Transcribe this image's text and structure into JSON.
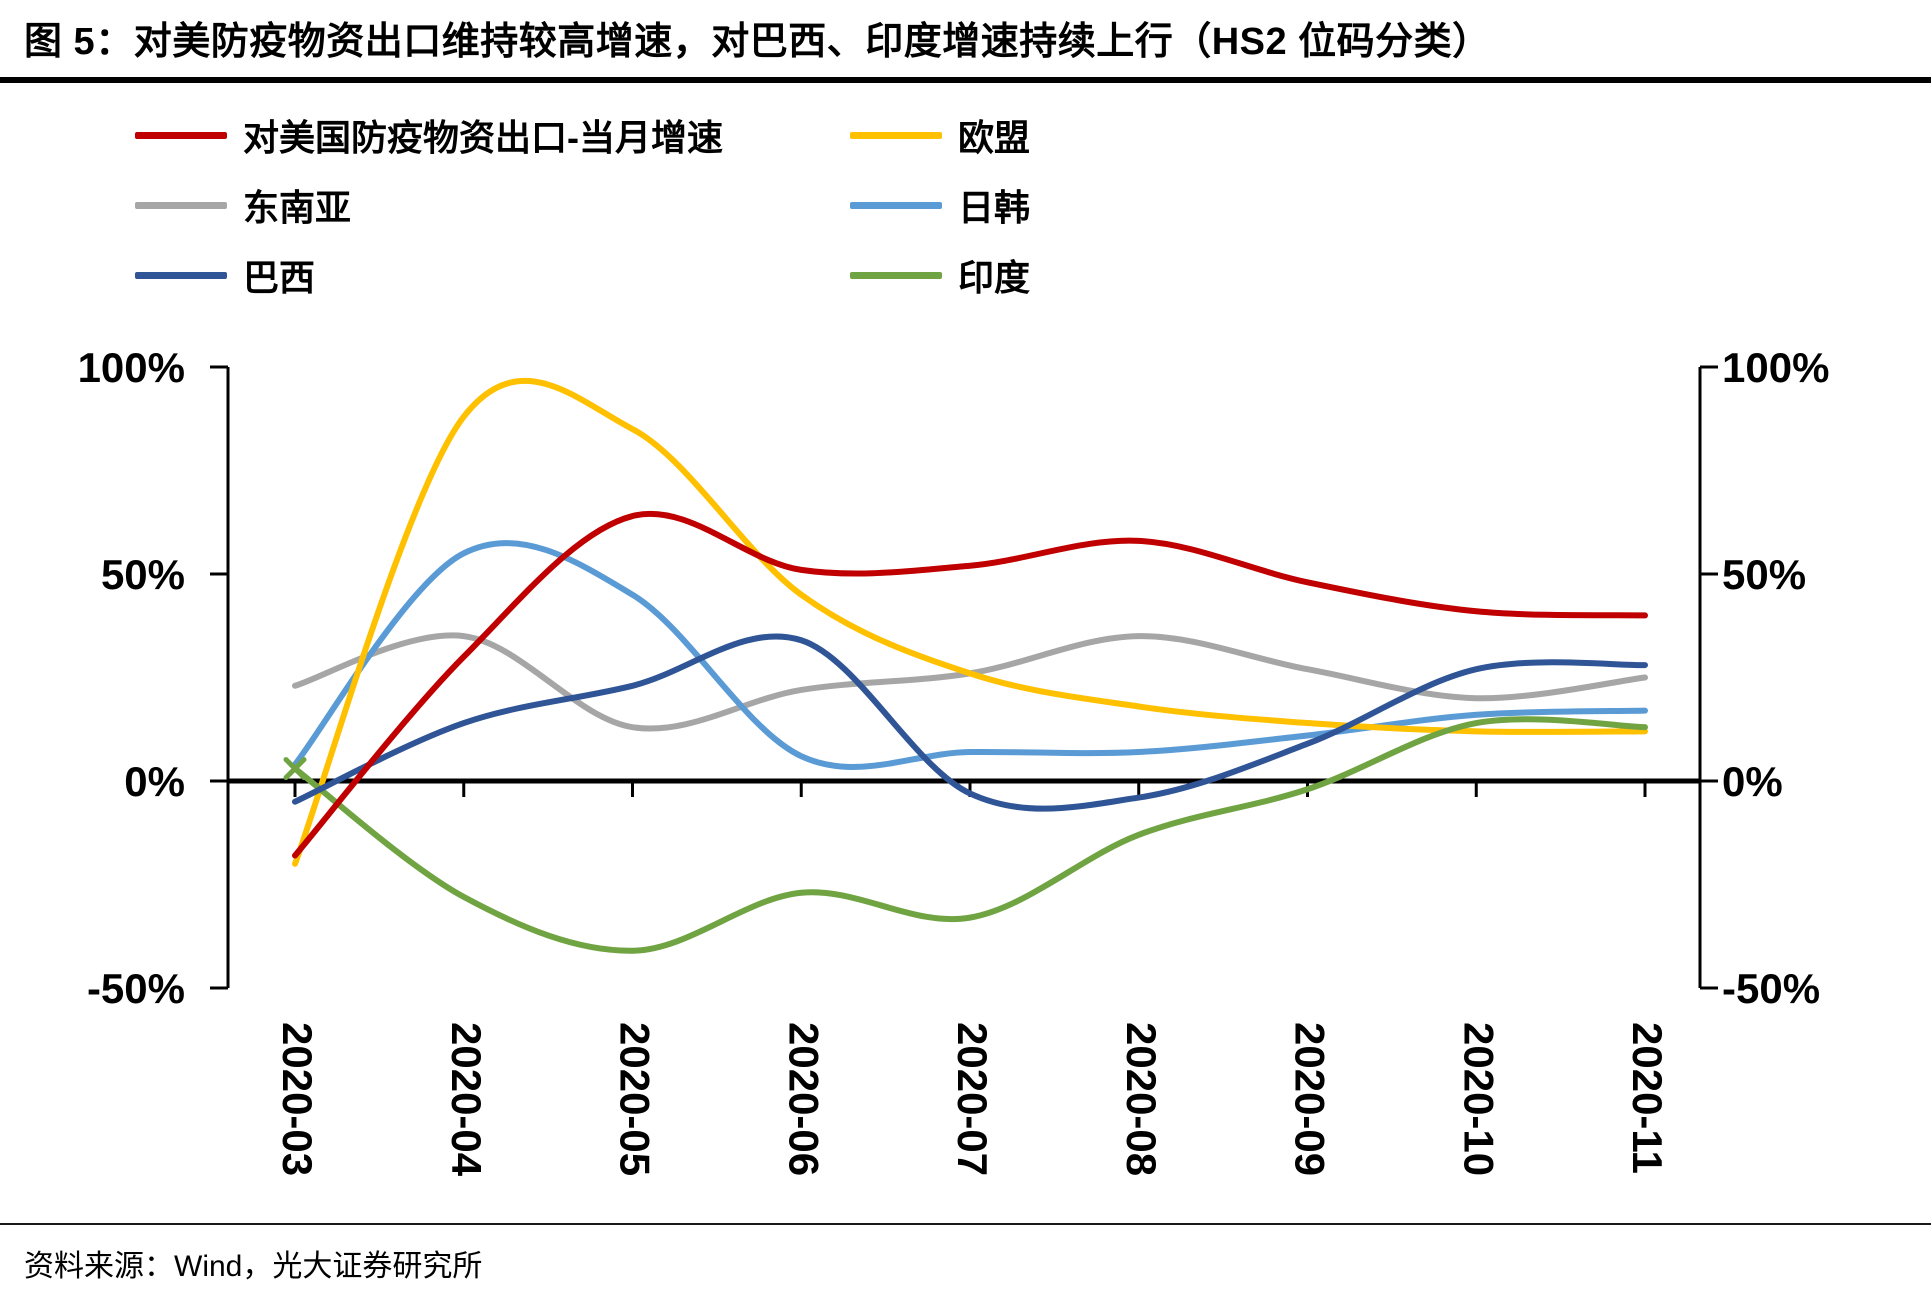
{
  "title": "图 5：对美防疫物资出口维持较高增速，对巴西、印度增速持续上行（HS2 位码分类）",
  "source": "资料来源：Wind，光大证券研究所",
  "chart_data": {
    "type": "line",
    "smooth": true,
    "grid": false,
    "legend_position": "top",
    "categories": [
      "2020-03",
      "2020-04",
      "2020-05",
      "2020-06",
      "2020-07",
      "2020-08",
      "2020-09",
      "2020-10",
      "2020-11"
    ],
    "series": [
      {
        "id": "us-covid-exports",
        "name": "对美国防疫物资出口-当月增速",
        "color": "#C00000",
        "values": [
          -18,
          30,
          64,
          51,
          52,
          58,
          48,
          41,
          40
        ]
      },
      {
        "id": "eu",
        "name": "欧盟",
        "color": "#FFC000",
        "values": [
          -20,
          88,
          85,
          45,
          26,
          18,
          14,
          12,
          12
        ]
      },
      {
        "id": "southeast-asia",
        "name": "东南亚",
        "color": "#A6A6A6",
        "values": [
          23,
          35,
          13,
          22,
          26,
          35,
          27,
          20,
          25
        ]
      },
      {
        "id": "japan-korea",
        "name": "日韩",
        "color": "#5B9BD5",
        "values": [
          4,
          55,
          45,
          6,
          7,
          7,
          11,
          16,
          17
        ]
      },
      {
        "id": "brazil",
        "name": "巴西",
        "color": "#2F5597",
        "values": [
          -5,
          14,
          23,
          34,
          -3,
          -4,
          9,
          27,
          28
        ]
      },
      {
        "id": "india",
        "name": "印度",
        "color": "#70A442",
        "first_point_marker": "x",
        "values": [
          3,
          -28,
          -41,
          -27,
          -33,
          -13,
          -2,
          14,
          13
        ]
      }
    ],
    "y_axis": {
      "ticks": [
        "100%",
        "50%",
        "0%",
        "-50%"
      ],
      "tick_values": [
        100,
        50,
        0,
        -50
      ],
      "min": -50,
      "max": 100,
      "dual_axis": true
    },
    "x_tick_rotation": 90,
    "units": "percent"
  }
}
